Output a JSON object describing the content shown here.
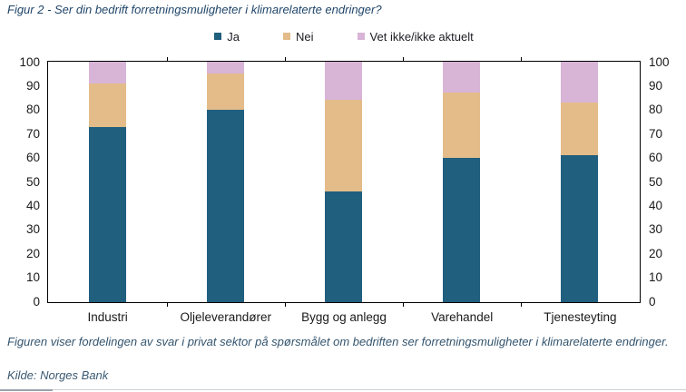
{
  "header": {
    "title": "Figur 2 - Ser din bedrift forretningsmuligheter i klimarelaterte endringer?"
  },
  "chart_data": {
    "type": "bar",
    "stacked": true,
    "title": "Figur 2 - Ser din bedrift forretningsmuligheter i klimarelaterte endringer?",
    "categories": [
      "Industri",
      "Oljeleverandører",
      "Bygg og anlegg",
      "Varehandel",
      "Tjenesteyting"
    ],
    "series": [
      {
        "name": "Ja",
        "color": "#215f7f",
        "values": [
          73,
          80,
          46,
          60,
          61
        ]
      },
      {
        "name": "Nei",
        "color": "#e3bc89",
        "values": [
          18,
          15,
          38,
          27,
          22
        ]
      },
      {
        "name": "Vet ikke/ikke aktuelt",
        "color": "#d8b4d7",
        "values": [
          9,
          5,
          16,
          13,
          17
        ]
      }
    ],
    "xlabel": "",
    "ylabel": "",
    "ylim": [
      0,
      100
    ],
    "ytick_step": 10,
    "y_axis_sides": "both",
    "grid": false,
    "legend_position": "top"
  },
  "footer": {
    "caption": "Figuren viser fordelingen av svar i privat sektor på spørsmålet om bedriften ser forretningsmuligheter i klimarelaterte endringer.",
    "source": "Kilde: Norges Bank"
  },
  "colors": {
    "title_text": "#1f4569",
    "caption_text": "#33546e",
    "source_text": "#3c5a72",
    "axis_text": "#1a1a1a",
    "frame": "#000000",
    "divider": "#cdd2d6"
  }
}
